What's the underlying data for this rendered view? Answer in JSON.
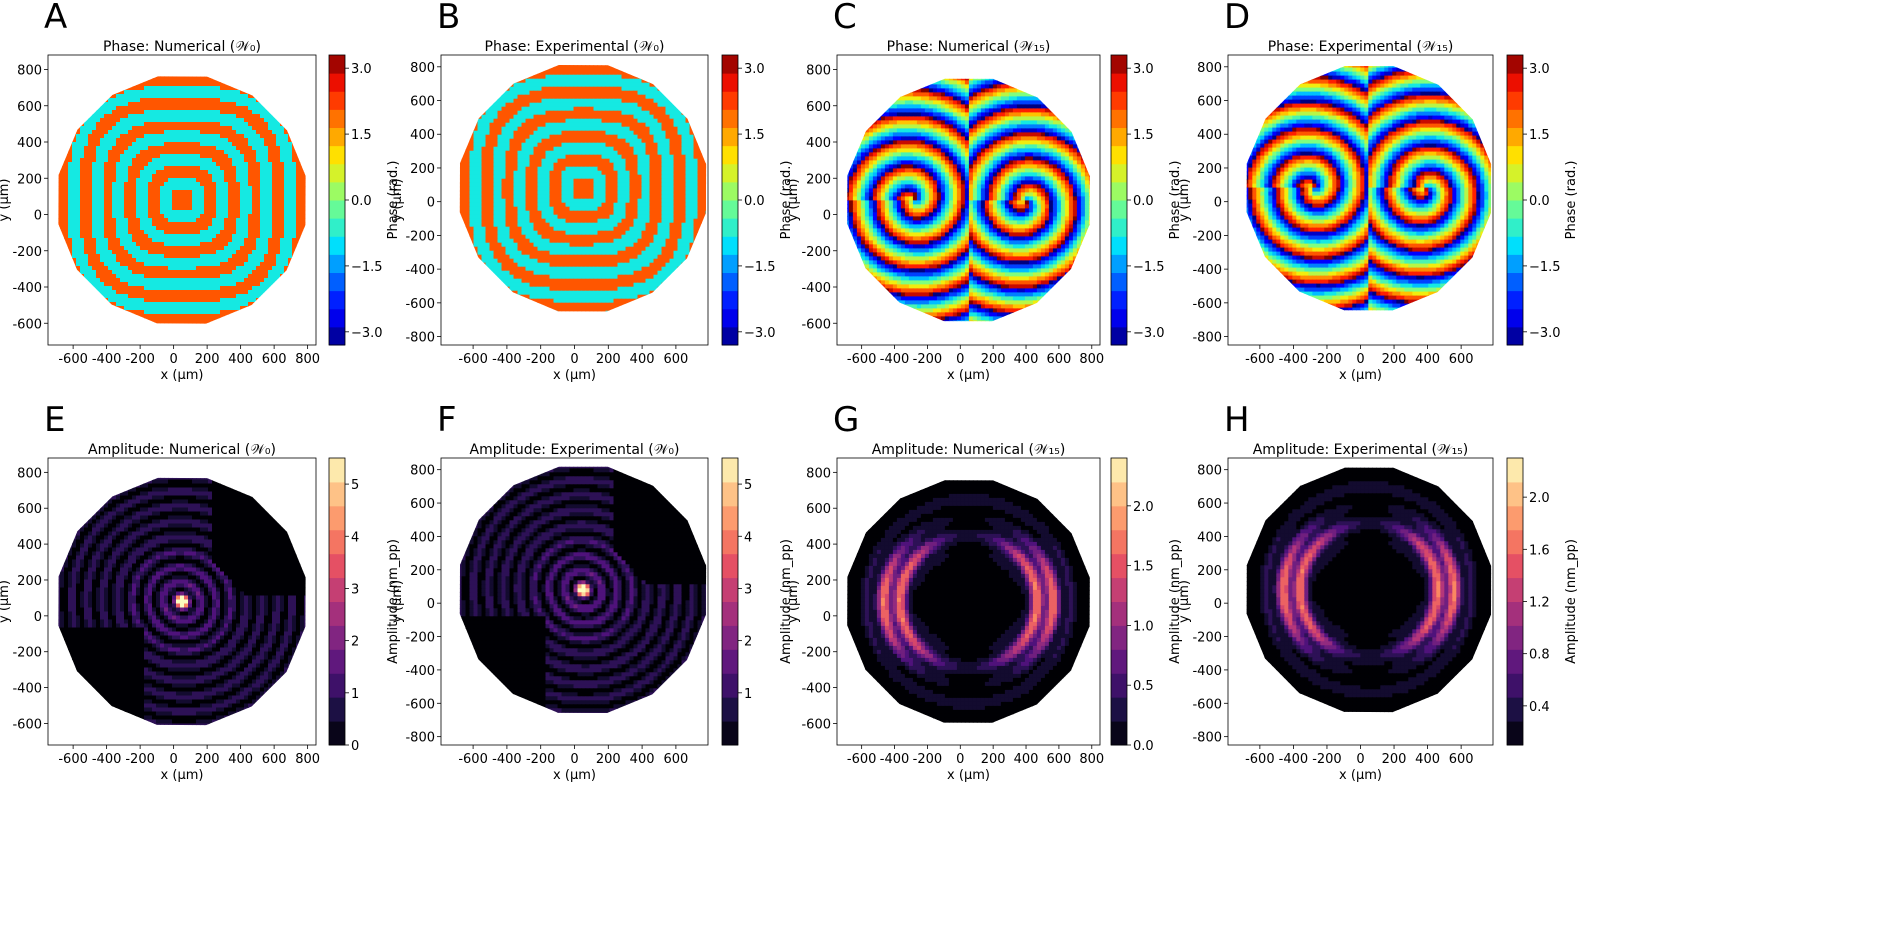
{
  "figure": {
    "description_note": ""
  },
  "chart_data": [
    {
      "type": "heatmap",
      "letter": "A",
      "title": "Phase: Numerical (𝒲₀)",
      "pattern": "rings-phase",
      "quantity": "phase",
      "colormap": "jet",
      "xlabel": "x (μm)",
      "ylabel": "y (μm)",
      "xticks": [
        "-600",
        "-400",
        "-200",
        "0",
        "200",
        "400",
        "600",
        "800"
      ],
      "yticks": [
        "800",
        "600",
        "400",
        "200",
        "0",
        "-200",
        "-400",
        "-600"
      ],
      "xlim": [
        -750,
        850
      ],
      "ylim": [
        -720,
        880
      ],
      "colorbar": {
        "label": "Phase (rad.)",
        "ticks": [
          "3.0",
          "1.5",
          "0.0",
          "−1.5",
          "−3.0"
        ],
        "range": [
          -3.3,
          3.3
        ]
      }
    },
    {
      "type": "heatmap",
      "letter": "B",
      "title": "Phase: Experimental (𝒲₀)",
      "pattern": "rings-phase",
      "quantity": "phase",
      "colormap": "jet",
      "xlabel": "x (μm)",
      "ylabel": "y (μm)",
      "xticks": [
        "-600",
        "-400",
        "-200",
        "0",
        "200",
        "400",
        "600"
      ],
      "yticks": [
        "800",
        "600",
        "400",
        "200",
        "0",
        "-200",
        "-400",
        "-600",
        "-800"
      ],
      "xlim": [
        -790,
        790
      ],
      "ylim": [
        -850,
        870
      ],
      "colorbar": {
        "label": "Phase (rad.)",
        "ticks": [
          "3.0",
          "1.5",
          "0.0",
          "−1.5",
          "−3.0"
        ],
        "range": [
          -3.3,
          3.3
        ]
      }
    },
    {
      "type": "heatmap",
      "letter": "C",
      "title": "Phase: Numerical (𝒲₁₅)",
      "pattern": "twin-phase",
      "quantity": "phase",
      "colormap": "jet",
      "xlabel": "x (μm)",
      "ylabel": "y (μm)",
      "xticks": [
        "-600",
        "-400",
        "-200",
        "0",
        "200",
        "400",
        "600",
        "800"
      ],
      "yticks": [
        "800",
        "600",
        "400",
        "200",
        "0",
        "-200",
        "-400",
        "-600"
      ],
      "xlim": [
        -750,
        850
      ],
      "ylim": [
        -720,
        880
      ],
      "colorbar": {
        "label": "Phase (rad.)",
        "ticks": [
          "3.0",
          "1.5",
          "0.0",
          "−1.5",
          "−3.0"
        ],
        "range": [
          -3.3,
          3.3
        ]
      }
    },
    {
      "type": "heatmap",
      "letter": "D",
      "title": "Phase: Experimental (𝒲₁₅)",
      "pattern": "twin-phase",
      "quantity": "phase",
      "colormap": "jet",
      "xlabel": "x (μm)",
      "ylabel": "y (μm)",
      "xticks": [
        "-600",
        "-400",
        "-200",
        "0",
        "200",
        "400",
        "600"
      ],
      "yticks": [
        "800",
        "600",
        "400",
        "200",
        "0",
        "-200",
        "-400",
        "-600",
        "-800"
      ],
      "xlim": [
        -790,
        790
      ],
      "ylim": [
        -850,
        870
      ],
      "colorbar": {
        "label": "Phase (rad.)",
        "ticks": [
          "3.0",
          "1.5",
          "0.0",
          "−1.5",
          "−3.0"
        ],
        "range": [
          -3.3,
          3.3
        ]
      }
    },
    {
      "type": "heatmap",
      "letter": "E",
      "title": "Amplitude: Numerical (𝒲₀)",
      "pattern": "center-amp",
      "quantity": "amplitude",
      "colormap": "magma",
      "xlabel": "x (μm)",
      "ylabel": "y (μm)",
      "xticks": [
        "-600",
        "-400",
        "-200",
        "0",
        "200",
        "400",
        "600",
        "800"
      ],
      "yticks": [
        "800",
        "600",
        "400",
        "200",
        "0",
        "-200",
        "-400",
        "-600"
      ],
      "xlim": [
        -750,
        850
      ],
      "ylim": [
        -720,
        880
      ],
      "colorbar": {
        "label": "Amplitude (nm_pp)",
        "ticks": [
          "5",
          "4",
          "3",
          "2",
          "1",
          "0"
        ],
        "tick_values": [
          5,
          4,
          3,
          2,
          1,
          0
        ],
        "range": [
          0,
          5.5
        ]
      }
    },
    {
      "type": "heatmap",
      "letter": "F",
      "title": "Amplitude: Experimental (𝒲₀)",
      "pattern": "center-amp",
      "quantity": "amplitude",
      "colormap": "magma",
      "xlabel": "x (μm)",
      "ylabel": "y (μm)",
      "xticks": [
        "-600",
        "-400",
        "-200",
        "0",
        "200",
        "400",
        "600"
      ],
      "yticks": [
        "800",
        "600",
        "400",
        "200",
        "0",
        "-200",
        "-400",
        "-600",
        "-800"
      ],
      "xlim": [
        -790,
        790
      ],
      "ylim": [
        -850,
        870
      ],
      "colorbar": {
        "label": "Amplitude (nm_pp)",
        "ticks": [
          "5",
          "4",
          "3",
          "2",
          "1"
        ],
        "tick_values": [
          5,
          4,
          3,
          2,
          1
        ],
        "range": [
          0,
          5.5
        ]
      }
    },
    {
      "type": "heatmap",
      "letter": "G",
      "title": "Amplitude: Numerical (𝒲₁₅)",
      "pattern": "ring-amp",
      "quantity": "amplitude",
      "colormap": "magma",
      "xlabel": "x (μm)",
      "ylabel": "y (μm)",
      "xticks": [
        "-600",
        "-400",
        "-200",
        "0",
        "200",
        "400",
        "600",
        "800"
      ],
      "yticks": [
        "800",
        "600",
        "400",
        "200",
        "0",
        "-200",
        "-400",
        "-600"
      ],
      "xlim": [
        -750,
        850
      ],
      "ylim": [
        -720,
        880
      ],
      "colorbar": {
        "label": "Amplitude (nm_pp)",
        "ticks": [
          "2.0",
          "1.5",
          "1.0",
          "0.5",
          "0.0"
        ],
        "tick_values": [
          2.0,
          1.5,
          1.0,
          0.5,
          0.0
        ],
        "range": [
          0,
          2.4
        ]
      }
    },
    {
      "type": "heatmap",
      "letter": "H",
      "title": "Amplitude: Experimental (𝒲₁₅)",
      "pattern": "ring-amp",
      "quantity": "amplitude",
      "colormap": "magma",
      "xlabel": "x (μm)",
      "ylabel": "y (μm)",
      "xticks": [
        "-600",
        "-400",
        "-200",
        "0",
        "200",
        "400",
        "600"
      ],
      "yticks": [
        "800",
        "600",
        "400",
        "200",
        "0",
        "-200",
        "-400",
        "-600",
        "-800"
      ],
      "xlim": [
        -790,
        790
      ],
      "ylim": [
        -850,
        870
      ],
      "colorbar": {
        "label": "Amplitude (nm_pp)",
        "ticks": [
          "2.0",
          "1.6",
          "1.2",
          "0.8",
          "0.4"
        ],
        "tick_values": [
          2.0,
          1.6,
          1.2,
          0.8,
          0.4
        ],
        "range": [
          0.1,
          2.3
        ]
      }
    }
  ]
}
